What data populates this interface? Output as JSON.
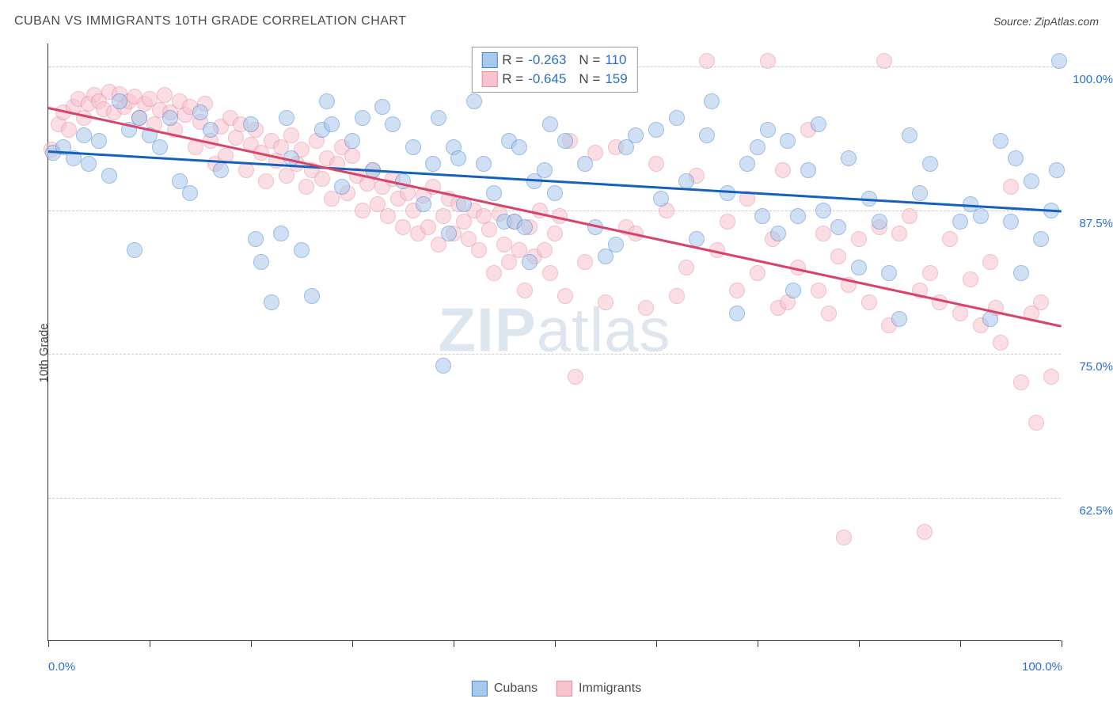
{
  "header": {
    "title": "CUBAN VS IMMIGRANTS 10TH GRADE CORRELATION CHART",
    "source": "Source: ZipAtlas.com"
  },
  "ylabel": "10th Grade",
  "watermark": {
    "brand1": "ZIP",
    "brand2": "atlas"
  },
  "chart": {
    "type": "scatter",
    "background_color": "#ffffff",
    "grid_color": "#cccccc",
    "grid_dashed": true,
    "axis_color": "#333333",
    "xlim": [
      0,
      100
    ],
    "ylim": [
      50,
      102
    ],
    "xticks": [
      0,
      10,
      20,
      30,
      40,
      50,
      60,
      70,
      80,
      90,
      100
    ],
    "yticks": [
      62.5,
      75.0,
      87.5,
      100.0
    ],
    "xtick_labels": {
      "0": "0.0%",
      "100": "100.0%"
    },
    "ytick_labels": [
      "62.5%",
      "75.0%",
      "87.5%",
      "100.0%"
    ],
    "label_color": "#2a6fc9",
    "label_fontsize": 15,
    "marker_radius": 10,
    "marker_opacity": 0.55,
    "series": [
      {
        "name": "Cubans",
        "fill": "#a8c8ec",
        "stroke": "#4a86cf",
        "trend_color": "#1560bd",
        "R": "-0.263",
        "N": "110",
        "trend": {
          "x1": 0,
          "y1": 92.7,
          "x2": 100,
          "y2": 87.5
        },
        "points": [
          [
            0.5,
            92.5
          ],
          [
            1.5,
            93
          ],
          [
            2.5,
            92
          ],
          [
            3.5,
            94
          ],
          [
            4,
            91.5
          ],
          [
            5,
            93.5
          ],
          [
            6,
            90.5
          ],
          [
            7,
            97
          ],
          [
            8,
            94.5
          ],
          [
            9,
            95.5
          ],
          [
            10,
            94
          ],
          [
            11,
            93
          ],
          [
            12,
            95.5
          ],
          [
            13,
            90
          ],
          [
            14,
            89
          ],
          [
            15,
            96
          ],
          [
            16,
            94.5
          ],
          [
            17,
            91
          ],
          [
            20,
            95
          ],
          [
            21,
            83
          ],
          [
            20.5,
            85
          ],
          [
            22,
            79.5
          ],
          [
            23,
            85.5
          ],
          [
            24,
            92
          ],
          [
            25,
            84
          ],
          [
            23.5,
            95.5
          ],
          [
            26,
            80
          ],
          [
            27,
            94.5
          ],
          [
            27.5,
            97
          ],
          [
            28,
            95
          ],
          [
            29,
            89.5
          ],
          [
            30,
            93.5
          ],
          [
            31,
            95.5
          ],
          [
            32,
            91
          ],
          [
            33,
            96.5
          ],
          [
            34,
            95
          ],
          [
            35,
            90
          ],
          [
            36,
            93
          ],
          [
            37,
            88
          ],
          [
            38,
            91.5
          ],
          [
            38.5,
            95.5
          ],
          [
            39,
            74
          ],
          [
            39.5,
            85.5
          ],
          [
            40,
            93
          ],
          [
            40.5,
            92
          ],
          [
            41,
            88
          ],
          [
            42,
            97
          ],
          [
            43,
            91.5
          ],
          [
            44,
            89
          ],
          [
            45,
            86.5
          ],
          [
            45.5,
            93.5
          ],
          [
            46,
            86.5
          ],
          [
            46.5,
            93
          ],
          [
            47,
            86
          ],
          [
            47.5,
            83
          ],
          [
            48,
            90
          ],
          [
            49,
            91
          ],
          [
            49.5,
            95
          ],
          [
            50,
            89
          ],
          [
            51,
            93.5
          ],
          [
            53,
            91.5
          ],
          [
            54,
            86
          ],
          [
            55,
            83.5
          ],
          [
            56,
            84.5
          ],
          [
            57,
            93
          ],
          [
            58,
            94
          ],
          [
            60,
            94.5
          ],
          [
            60.5,
            88.5
          ],
          [
            62,
            95.5
          ],
          [
            63,
            90
          ],
          [
            64,
            85
          ],
          [
            65,
            94
          ],
          [
            65.5,
            97
          ],
          [
            67,
            89
          ],
          [
            68,
            78.5
          ],
          [
            69,
            91.5
          ],
          [
            70,
            93
          ],
          [
            70.5,
            87
          ],
          [
            71,
            94.5
          ],
          [
            72,
            85.5
          ],
          [
            73,
            93.5
          ],
          [
            73.5,
            80.5
          ],
          [
            74,
            87
          ],
          [
            75,
            91
          ],
          [
            76,
            95
          ],
          [
            76.5,
            87.5
          ],
          [
            78,
            86
          ],
          [
            79,
            92
          ],
          [
            80,
            82.5
          ],
          [
            81,
            88.5
          ],
          [
            82,
            86.5
          ],
          [
            83,
            82
          ],
          [
            84,
            78
          ],
          [
            85,
            94
          ],
          [
            86,
            89
          ],
          [
            87,
            91.5
          ],
          [
            90,
            86.5
          ],
          [
            91,
            88
          ],
          [
            92,
            87
          ],
          [
            93,
            78
          ],
          [
            94,
            93.5
          ],
          [
            95,
            86.5
          ],
          [
            95.5,
            92
          ],
          [
            96,
            82
          ],
          [
            97,
            90
          ],
          [
            98,
            85
          ],
          [
            99,
            87.5
          ],
          [
            99.5,
            91
          ],
          [
            8.5,
            84
          ],
          [
            99.8,
            100.5
          ]
        ]
      },
      {
        "name": "Immigrants",
        "fill": "#f6c4cf",
        "stroke": "#e88aa0",
        "trend_color": "#d9436a",
        "R": "-0.645",
        "N": "159",
        "trend": {
          "x1": 0,
          "y1": 96.5,
          "x2": 100,
          "y2": 77.5
        },
        "points": [
          [
            0.3,
            92.8
          ],
          [
            1,
            95
          ],
          [
            1.5,
            96
          ],
          [
            2,
            94.5
          ],
          [
            2.5,
            96.5
          ],
          [
            3,
            97.2
          ],
          [
            3.5,
            95.5
          ],
          [
            4,
            96.8
          ],
          [
            4.5,
            97.5
          ],
          [
            5,
            97
          ],
          [
            5.5,
            96.3
          ],
          [
            6,
            97.8
          ],
          [
            6.5,
            96
          ],
          [
            7,
            97.6
          ],
          [
            7.5,
            96.5
          ],
          [
            8,
            97
          ],
          [
            8.5,
            97.4
          ],
          [
            9,
            95.5
          ],
          [
            9.5,
            96.8
          ],
          [
            10,
            97.2
          ],
          [
            10.5,
            95
          ],
          [
            11,
            96.2
          ],
          [
            11.5,
            97.5
          ],
          [
            12,
            96
          ],
          [
            12.5,
            94.5
          ],
          [
            13,
            97
          ],
          [
            13.5,
            95.8
          ],
          [
            14,
            96.5
          ],
          [
            14.5,
            93
          ],
          [
            15,
            95.2
          ],
          [
            15.5,
            96.8
          ],
          [
            16,
            93.5
          ],
          [
            16.5,
            91.5
          ],
          [
            17,
            94.8
          ],
          [
            17.5,
            92.2
          ],
          [
            18,
            95.5
          ],
          [
            18.5,
            93.8
          ],
          [
            19,
            95
          ],
          [
            19.5,
            91
          ],
          [
            20,
            93.2
          ],
          [
            20.5,
            94.5
          ],
          [
            21,
            92.5
          ],
          [
            21.5,
            90
          ],
          [
            22,
            93.5
          ],
          [
            22.5,
            91.8
          ],
          [
            23,
            93
          ],
          [
            23.5,
            90.5
          ],
          [
            24,
            94
          ],
          [
            24.5,
            91.5
          ],
          [
            25,
            92.8
          ],
          [
            25.5,
            89.5
          ],
          [
            26,
            91
          ],
          [
            26.5,
            93.5
          ],
          [
            27,
            90.2
          ],
          [
            27.5,
            92
          ],
          [
            28,
            88.5
          ],
          [
            28.5,
            91.5
          ],
          [
            29,
            93
          ],
          [
            29.5,
            89
          ],
          [
            30,
            92.2
          ],
          [
            30.5,
            90.5
          ],
          [
            31,
            87.5
          ],
          [
            31.5,
            89.8
          ],
          [
            32,
            91
          ],
          [
            32.5,
            88
          ],
          [
            33,
            89.5
          ],
          [
            33.5,
            87
          ],
          [
            34,
            90.2
          ],
          [
            34.5,
            88.5
          ],
          [
            35,
            86
          ],
          [
            35.5,
            89
          ],
          [
            36,
            87.5
          ],
          [
            36.5,
            85.5
          ],
          [
            37,
            88.8
          ],
          [
            37.5,
            86
          ],
          [
            38,
            89.5
          ],
          [
            38.5,
            84.5
          ],
          [
            39,
            87
          ],
          [
            39.5,
            88.5
          ],
          [
            40,
            85.5
          ],
          [
            40.5,
            88
          ],
          [
            41,
            86.5
          ],
          [
            41.5,
            85
          ],
          [
            42,
            87.5
          ],
          [
            42.5,
            84
          ],
          [
            43,
            87
          ],
          [
            43.5,
            85.8
          ],
          [
            44,
            82
          ],
          [
            44.5,
            87.2
          ],
          [
            45,
            84.5
          ],
          [
            45.5,
            83
          ],
          [
            46,
            86.5
          ],
          [
            46.5,
            84
          ],
          [
            47,
            80.5
          ],
          [
            47.5,
            86
          ],
          [
            48,
            83.5
          ],
          [
            48.5,
            87.5
          ],
          [
            49,
            84
          ],
          [
            49.5,
            82
          ],
          [
            50,
            85.5
          ],
          [
            50.5,
            87
          ],
          [
            51,
            80
          ],
          [
            51.5,
            93.5
          ],
          [
            52,
            73
          ],
          [
            53,
            83
          ],
          [
            54,
            92.5
          ],
          [
            55,
            79.5
          ],
          [
            56,
            93
          ],
          [
            57,
            86
          ],
          [
            58,
            85.5
          ],
          [
            59,
            79
          ],
          [
            60,
            91.5
          ],
          [
            61,
            87.5
          ],
          [
            62,
            80
          ],
          [
            63,
            82.5
          ],
          [
            64,
            90.5
          ],
          [
            65,
            100.5
          ],
          [
            66,
            84
          ],
          [
            67,
            86.5
          ],
          [
            68,
            80.5
          ],
          [
            69,
            88.5
          ],
          [
            70,
            82
          ],
          [
            71,
            100.5
          ],
          [
            71.5,
            85
          ],
          [
            72,
            79
          ],
          [
            72.5,
            91
          ],
          [
            73,
            79.5
          ],
          [
            74,
            82.5
          ],
          [
            75,
            94.5
          ],
          [
            76,
            80.5
          ],
          [
            76.5,
            85.5
          ],
          [
            77,
            78.5
          ],
          [
            78,
            83.5
          ],
          [
            78.5,
            59
          ],
          [
            79,
            81
          ],
          [
            80,
            85
          ],
          [
            81,
            79.5
          ],
          [
            82,
            86
          ],
          [
            82.5,
            100.5
          ],
          [
            83,
            77.5
          ],
          [
            84,
            85.5
          ],
          [
            85,
            87
          ],
          [
            86,
            80.5
          ],
          [
            86.5,
            59.5
          ],
          [
            87,
            82
          ],
          [
            88,
            79.5
          ],
          [
            89,
            85
          ],
          [
            90,
            78.5
          ],
          [
            91,
            81.5
          ],
          [
            92,
            77.5
          ],
          [
            93,
            83
          ],
          [
            93.5,
            79
          ],
          [
            94,
            76
          ],
          [
            95,
            89.5
          ],
          [
            96,
            72.5
          ],
          [
            97,
            78.5
          ],
          [
            97.5,
            69
          ],
          [
            98,
            79.5
          ],
          [
            99,
            73
          ]
        ]
      }
    ]
  },
  "legend_bottom": [
    {
      "label": "Cubans",
      "fill": "#a8c8ec",
      "stroke": "#4a86cf"
    },
    {
      "label": "Immigrants",
      "fill": "#f6c4cf",
      "stroke": "#e88aa0"
    }
  ]
}
